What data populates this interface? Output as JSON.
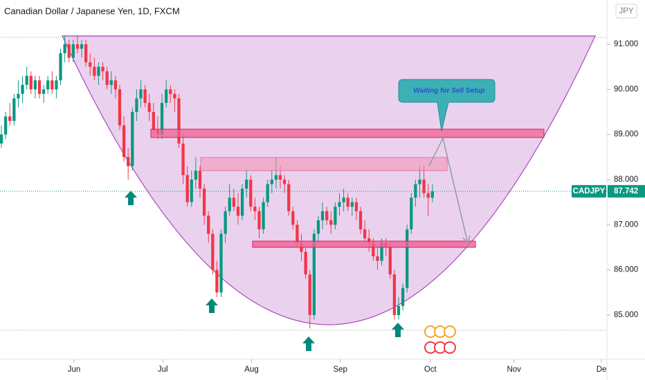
{
  "chart_data": {
    "type": "candlestick",
    "title": "Canadian Dollar / Japanese Yen, 1D, FXCM",
    "currency": "JPY",
    "symbol": "CADJPY",
    "last_price": {
      "value": 87.742,
      "label": "87.742"
    },
    "annotation": "Waiting for Sell Setup",
    "up_color": "#089981",
    "down_color": "#f23645",
    "xlim": [
      -0.33,
      143.3
    ],
    "xticks": [
      {
        "value": 17.2,
        "label": "Jun"
      },
      {
        "value": 38.2,
        "label": "Jul"
      },
      {
        "value": 59.2,
        "label": "Aug"
      },
      {
        "value": 80.2,
        "label": "Sep"
      },
      {
        "value": 101.5,
        "label": "Oct"
      },
      {
        "value": 121.3,
        "label": "Nov"
      },
      {
        "value": 142,
        "label": "De"
      }
    ],
    "ylim": [
      84.02,
      91.98
    ],
    "yticks": [
      {
        "value": 85,
        "label": "85.000"
      },
      {
        "value": 86,
        "label": "86.000"
      },
      {
        "value": 87,
        "label": "87.000"
      },
      {
        "value": 88,
        "label": "88.000"
      },
      {
        "value": 89,
        "label": "89.000"
      },
      {
        "value": 90,
        "label": "90.000"
      },
      {
        "value": 91,
        "label": "91.000"
      }
    ],
    "ohlc": [
      [
        88.8,
        89.2,
        88.7,
        89.0
      ],
      [
        89.0,
        89.5,
        88.9,
        89.4
      ],
      [
        89.4,
        89.7,
        89.2,
        89.3
      ],
      [
        89.3,
        89.9,
        89.2,
        89.8
      ],
      [
        89.8,
        90.2,
        89.6,
        89.9
      ],
      [
        89.9,
        90.3,
        89.7,
        90.1
      ],
      [
        90.1,
        90.5,
        90.0,
        90.3
      ],
      [
        90.3,
        90.4,
        89.9,
        90.0
      ],
      [
        90.0,
        90.3,
        89.8,
        90.2
      ],
      [
        90.2,
        90.3,
        89.8,
        89.9
      ],
      [
        89.9,
        90.1,
        89.7,
        90.0
      ],
      [
        90.0,
        90.3,
        89.9,
        90.2
      ],
      [
        90.2,
        90.4,
        89.9,
        90.0
      ],
      [
        90.0,
        90.3,
        89.8,
        90.2
      ],
      [
        90.2,
        90.9,
        90.1,
        90.8
      ],
      [
        90.8,
        91.2,
        90.6,
        91.0
      ],
      [
        91.0,
        91.1,
        90.6,
        90.7
      ],
      [
        90.7,
        91.1,
        90.6,
        91.0
      ],
      [
        91.0,
        91.2,
        90.8,
        90.9
      ],
      [
        90.9,
        91.1,
        90.7,
        91.0
      ],
      [
        91.0,
        91.1,
        90.5,
        90.6
      ],
      [
        90.6,
        90.8,
        90.3,
        90.5
      ],
      [
        90.5,
        90.7,
        90.2,
        90.3
      ],
      [
        90.3,
        90.6,
        90.1,
        90.5
      ],
      [
        90.5,
        90.6,
        90.2,
        90.4
      ],
      [
        90.4,
        90.5,
        90.0,
        90.1
      ],
      [
        90.1,
        90.4,
        89.9,
        90.2
      ],
      [
        90.2,
        90.3,
        89.8,
        90.0
      ],
      [
        90.0,
        90.1,
        89.1,
        89.2
      ],
      [
        89.2,
        89.4,
        88.4,
        88.5
      ],
      [
        88.5,
        88.7,
        88.0,
        88.3
      ],
      [
        88.3,
        89.6,
        88.2,
        89.5
      ],
      [
        89.5,
        90.0,
        89.3,
        89.8
      ],
      [
        89.8,
        90.2,
        89.6,
        90.0
      ],
      [
        90.0,
        90.1,
        89.6,
        89.7
      ],
      [
        89.7,
        89.9,
        89.3,
        89.5
      ],
      [
        89.5,
        89.7,
        89.0,
        89.1
      ],
      [
        89.1,
        89.4,
        88.9,
        89.0
      ],
      [
        89.0,
        89.9,
        88.9,
        89.7
      ],
      [
        89.7,
        90.2,
        89.6,
        90.0
      ],
      [
        90.0,
        90.1,
        89.7,
        89.9
      ],
      [
        89.9,
        90.0,
        89.5,
        89.8
      ],
      [
        89.8,
        89.9,
        88.7,
        88.8
      ],
      [
        88.8,
        89.0,
        87.9,
        88.1
      ],
      [
        88.1,
        88.3,
        87.4,
        87.5
      ],
      [
        87.5,
        88.2,
        87.4,
        88.0
      ],
      [
        88.0,
        88.5,
        87.8,
        88.2
      ],
      [
        88.2,
        88.3,
        87.6,
        87.8
      ],
      [
        87.8,
        87.9,
        87.0,
        87.2
      ],
      [
        87.2,
        87.3,
        86.6,
        86.8
      ],
      [
        86.8,
        86.9,
        85.9,
        86.0
      ],
      [
        86.0,
        86.2,
        85.4,
        85.5
      ],
      [
        85.5,
        86.9,
        85.4,
        86.8
      ],
      [
        86.8,
        87.4,
        86.6,
        87.3
      ],
      [
        87.3,
        87.9,
        87.2,
        87.6
      ],
      [
        87.6,
        87.8,
        87.3,
        87.4
      ],
      [
        87.4,
        87.7,
        87.0,
        87.2
      ],
      [
        87.2,
        87.9,
        87.1,
        87.8
      ],
      [
        87.8,
        88.2,
        87.6,
        88.0
      ],
      [
        88.0,
        88.1,
        87.3,
        87.4
      ],
      [
        87.4,
        87.6,
        87.1,
        87.3
      ],
      [
        87.3,
        87.4,
        86.7,
        86.9
      ],
      [
        86.9,
        87.6,
        86.8,
        87.5
      ],
      [
        87.5,
        88.0,
        87.4,
        87.9
      ],
      [
        87.9,
        88.2,
        87.7,
        88.0
      ],
      [
        88.0,
        88.5,
        87.8,
        88.1
      ],
      [
        88.1,
        88.3,
        87.8,
        88.0
      ],
      [
        88.0,
        88.1,
        87.7,
        87.9
      ],
      [
        87.9,
        88.0,
        87.2,
        87.3
      ],
      [
        87.3,
        87.4,
        86.9,
        87.0
      ],
      [
        87.0,
        87.1,
        86.5,
        86.6
      ],
      [
        86.6,
        86.8,
        86.2,
        86.4
      ],
      [
        86.4,
        86.5,
        85.8,
        85.9
      ],
      [
        85.9,
        86.0,
        84.7,
        85.0
      ],
      [
        85.0,
        86.9,
        84.9,
        86.8
      ],
      [
        86.8,
        87.2,
        86.6,
        87.1
      ],
      [
        87.1,
        87.5,
        86.9,
        87.3
      ],
      [
        87.3,
        87.4,
        87.0,
        87.1
      ],
      [
        87.1,
        87.3,
        86.8,
        87.0
      ],
      [
        87.0,
        87.5,
        86.9,
        87.4
      ],
      [
        87.4,
        87.7,
        87.2,
        87.5
      ],
      [
        87.5,
        87.8,
        87.3,
        87.6
      ],
      [
        87.6,
        87.7,
        87.3,
        87.4
      ],
      [
        87.4,
        87.6,
        87.2,
        87.5
      ],
      [
        87.5,
        87.6,
        87.1,
        87.3
      ],
      [
        87.3,
        87.4,
        86.8,
        86.9
      ],
      [
        86.9,
        87.1,
        86.6,
        86.7
      ],
      [
        86.7,
        86.9,
        86.4,
        86.6
      ],
      [
        86.6,
        86.7,
        86.2,
        86.3
      ],
      [
        86.3,
        86.5,
        86.0,
        86.2
      ],
      [
        86.2,
        86.7,
        86.1,
        86.6
      ],
      [
        86.6,
        86.7,
        86.3,
        86.5
      ],
      [
        86.5,
        86.6,
        85.8,
        85.9
      ],
      [
        85.9,
        86.0,
        84.9,
        85.0
      ],
      [
        85.0,
        85.4,
        84.9,
        85.2
      ],
      [
        85.2,
        85.7,
        85.1,
        85.6
      ],
      [
        85.6,
        87.0,
        85.5,
        86.9
      ],
      [
        86.9,
        87.7,
        86.8,
        87.6
      ],
      [
        87.6,
        88.0,
        87.4,
        87.9
      ],
      [
        87.9,
        88.3,
        87.6,
        88.0
      ],
      [
        88.0,
        88.3,
        87.6,
        87.7
      ],
      [
        87.7,
        87.9,
        87.2,
        87.6
      ],
      [
        87.6,
        87.9,
        87.5,
        87.742
      ]
    ]
  }
}
